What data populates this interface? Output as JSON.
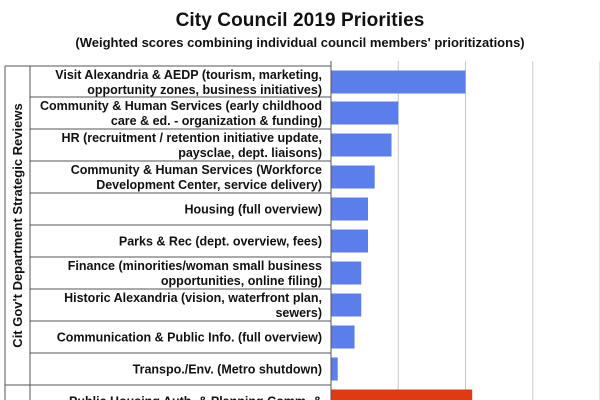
{
  "chart_data": {
    "type": "bar",
    "orientation": "horizontal",
    "title": "City Council 2019 Priorities",
    "subtitle": "(Weighted scores combining individual council members' prioritizations)",
    "group_label": "Cit Gov't Department Strategic Reviews",
    "grid": true,
    "xlim": [
      0,
      40
    ],
    "colors": {
      "default_bar": "#5b7fea",
      "highlight_bar": "#e03a12",
      "grid": "#c8c8c8"
    },
    "categories": [
      [
        "Visit Alexandria & AEDP (tourism, marketing,",
        "opportunity zones, business initiatives)"
      ],
      [
        "Community & Human Services (early childhood",
        "care & ed. - organization & funding)"
      ],
      [
        "HR (recruitment / retention initiative update,",
        "paysclae, dept. liaisons)"
      ],
      [
        "Community & Human Services (Workforce",
        "Development Center, service delivery)"
      ],
      [
        "Housing (full overview)"
      ],
      [
        "Parks & Rec (dept. overview, fees)"
      ],
      [
        "Finance (minorities/woman small business",
        "opportunities, online filing)"
      ],
      [
        "Historic Alexandria (vision, waterfront plan,",
        "sewers)"
      ],
      [
        "Communication & Public Info. (full overview)"
      ],
      [
        "Transpo./Env. (Metro shutdown)"
      ],
      [
        "Public Housing Auth. & Planning Comm. &"
      ]
    ],
    "values": [
      20,
      10,
      9,
      6.5,
      5.5,
      5.5,
      4.5,
      4.5,
      3.5,
      1,
      21
    ],
    "highlight": [
      false,
      false,
      false,
      false,
      false,
      false,
      false,
      false,
      false,
      false,
      true
    ]
  }
}
